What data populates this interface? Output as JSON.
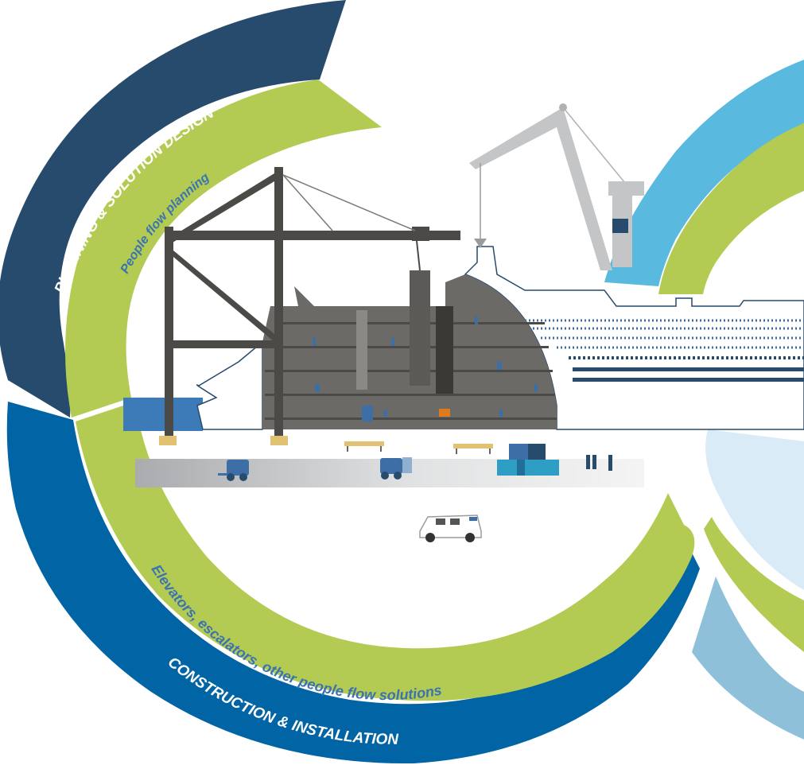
{
  "diagram": {
    "outer_ring_top_label": "PLANNING & SOLUTION DESIGN",
    "inner_ring_top_label": "People flow planning",
    "inner_ring_bottom_label": "Elevators, escalators, other people flow solutions",
    "outer_ring_bottom_label": "CONSTRUCTION & INSTALLATION"
  },
  "colors": {
    "dark_navy": "#274b6d",
    "deep_blue": "#0064a5",
    "lime_green": "#b3cb53",
    "sky_blue": "#5ab9de",
    "pale_blue": "#d8ebf6",
    "steel_grey": "#4b4a46",
    "hull_grey": "#6b6a66",
    "crane_grey": "#c4c5c7"
  }
}
